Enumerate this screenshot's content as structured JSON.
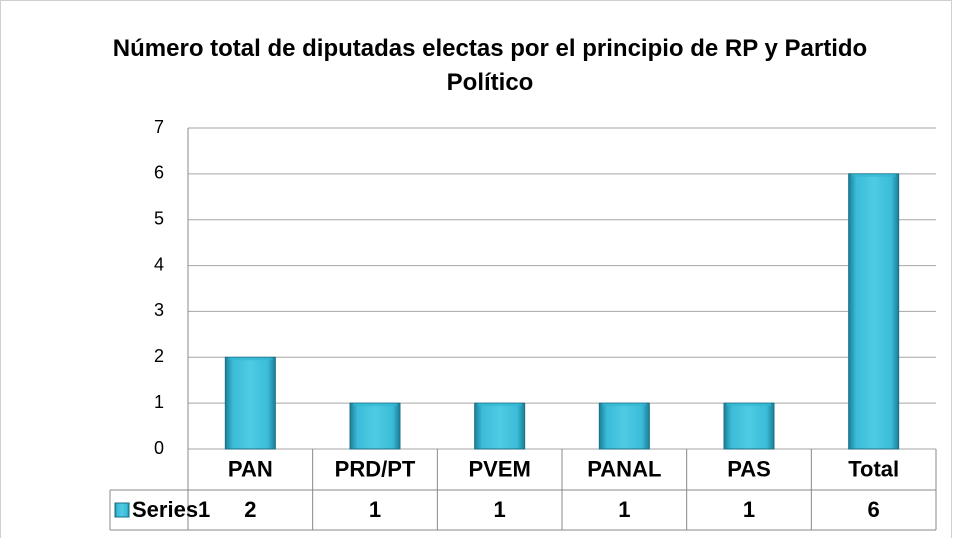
{
  "chart_data": {
    "type": "bar",
    "title": "Número total de diputadas electas por el principio de RP y Partido Político",
    "categories": [
      "PAN",
      "PRD/PT",
      "PVEM",
      "PANAL",
      "PAS",
      "Total"
    ],
    "series": [
      {
        "name": "Series1",
        "color": "#31b6d2",
        "values": [
          2,
          1,
          1,
          1,
          1,
          6
        ]
      }
    ],
    "ylim": [
      0,
      7
    ],
    "yticks": [
      0,
      1,
      2,
      3,
      4,
      5,
      6,
      7
    ],
    "grid": true,
    "data_table": true
  }
}
